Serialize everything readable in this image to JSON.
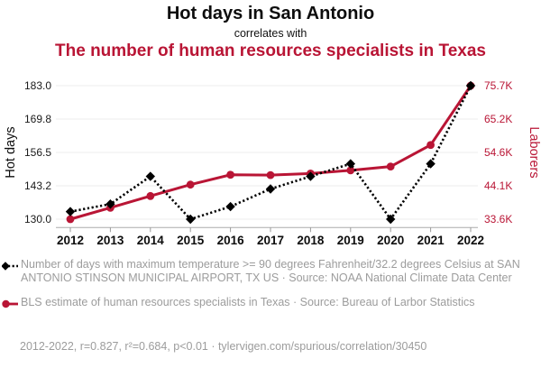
{
  "header": {
    "title": "Hot days in San Antonio",
    "connector": "correlates with",
    "subtitle": "The number of human resources specialists in Texas"
  },
  "colors": {
    "accent_red": "#b91535",
    "series_black": "#000000",
    "legend_gray": "#9c9c9c"
  },
  "chart_data": {
    "type": "line",
    "x_labels": [
      "2012",
      "2013",
      "2014",
      "2015",
      "2016",
      "2017",
      "2018",
      "2019",
      "2020",
      "2021",
      "2022"
    ],
    "series": [
      {
        "name": "Hot days",
        "axis": "left",
        "color": "#000000",
        "line_style": "dotted",
        "marker": "diamond",
        "values": [
          133,
          136,
          147,
          130,
          135,
          142,
          147,
          152,
          130,
          152,
          183
        ]
      },
      {
        "name": "Laborers",
        "axis": "right",
        "color": "#b91535",
        "line_style": "solid",
        "marker": "circle",
        "values": [
          33600,
          37200,
          40900,
          44500,
          47600,
          47500,
          48000,
          49000,
          50200,
          57000,
          75700
        ]
      }
    ],
    "left_axis": {
      "label": "Hot days",
      "min": 130.0,
      "max": 183.0,
      "tick_labels": [
        "130.0",
        "143.2",
        "156.5",
        "169.8",
        "183.0"
      ]
    },
    "right_axis": {
      "label": "Laborers",
      "min": 33600,
      "max": 75700,
      "tick_labels": [
        "33.6K",
        "44.1K",
        "54.6K",
        "65.2K",
        "75.7K"
      ]
    },
    "grid": true,
    "legend_position": "bottom"
  },
  "legend": {
    "items": [
      {
        "marker": "black-diamond-dotted-line",
        "text": "Number of days with maximum temperature >= 90 degrees Fahrenheit/32.2 degrees Celsius at SAN ANTONIO STINSON MUNICIPAL AIRPORT, TX US · Source: NOAA National Climate Data Center"
      },
      {
        "marker": "red-circle-solid-line",
        "text": "BLS estimate of human resources specialists in Texas · Source: Bureau of Larbor Statistics"
      }
    ]
  },
  "footer": {
    "text": "2012-2022, r=0.827, r²=0.684, p<0.01 · tylervigen.com/spurious/correlation/30450"
  }
}
